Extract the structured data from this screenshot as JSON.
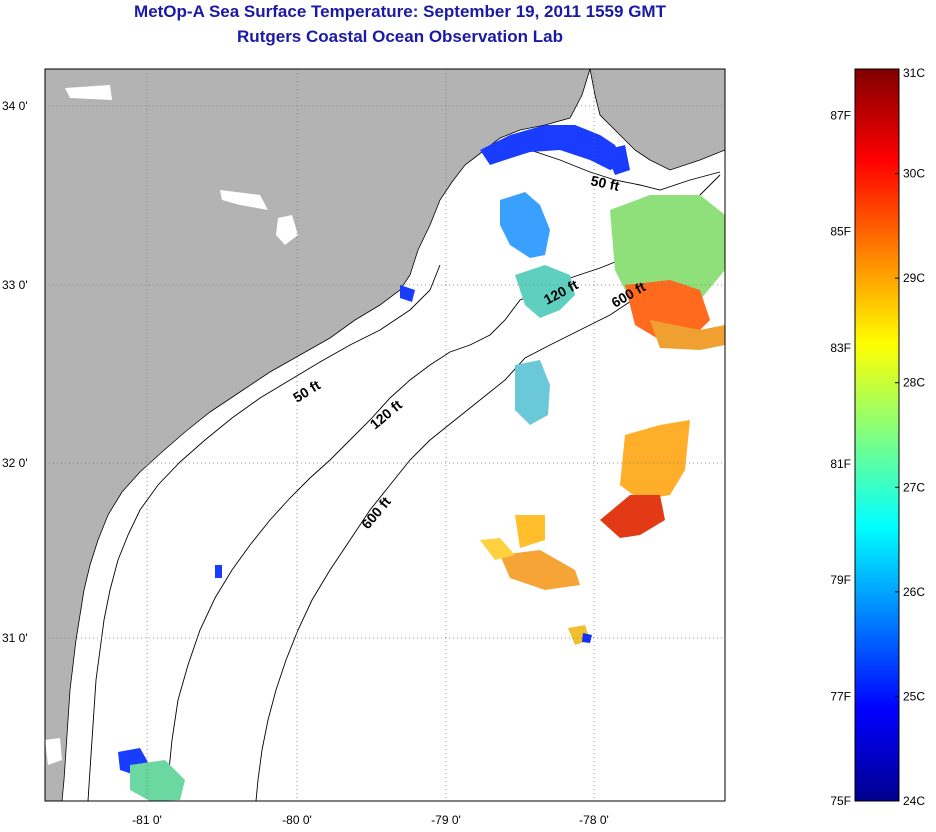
{
  "title": "MetOp-A Sea Surface Temperature:  September 19, 2011 1559 GMT",
  "subtitle": "Rutgers Coastal Ocean Observation Lab",
  "map": {
    "lat_labels": [
      "34 0'",
      "33 0'",
      "32 0'",
      "31 0'"
    ],
    "lat_values": [
      34,
      33,
      32,
      31
    ],
    "lon_labels": [
      "-81 0'",
      "-80 0'",
      "-79 0'",
      "-78 0'"
    ],
    "lon_values": [
      -81,
      -80,
      -79,
      -78
    ],
    "lat_range": [
      30.2,
      34.2
    ],
    "lon_range": [
      -81.7,
      -77.1
    ],
    "land_color": "#b3b3b3",
    "ocean_color": "#ffffff",
    "contour_labels": [
      {
        "text": "50 ft"
      },
      {
        "text": "120 ft"
      },
      {
        "text": "600 ft"
      },
      {
        "text": "50 ft"
      },
      {
        "text": "120 ft"
      },
      {
        "text": "600 ft"
      }
    ]
  },
  "colorbar": {
    "celsius_labels": [
      "31C",
      "30C",
      "29C",
      "28C",
      "27C",
      "26C",
      "25C",
      "24C"
    ],
    "fahrenheit_labels": [
      "87F",
      "85F",
      "83F",
      "81F",
      "79F",
      "77F",
      "75F"
    ],
    "range_c": [
      24,
      31
    ],
    "colors": [
      "#00008f",
      "#0000ff",
      "#0080ff",
      "#00ffff",
      "#80ff80",
      "#ffff00",
      "#ff8000",
      "#ff0000",
      "#800000"
    ]
  }
}
